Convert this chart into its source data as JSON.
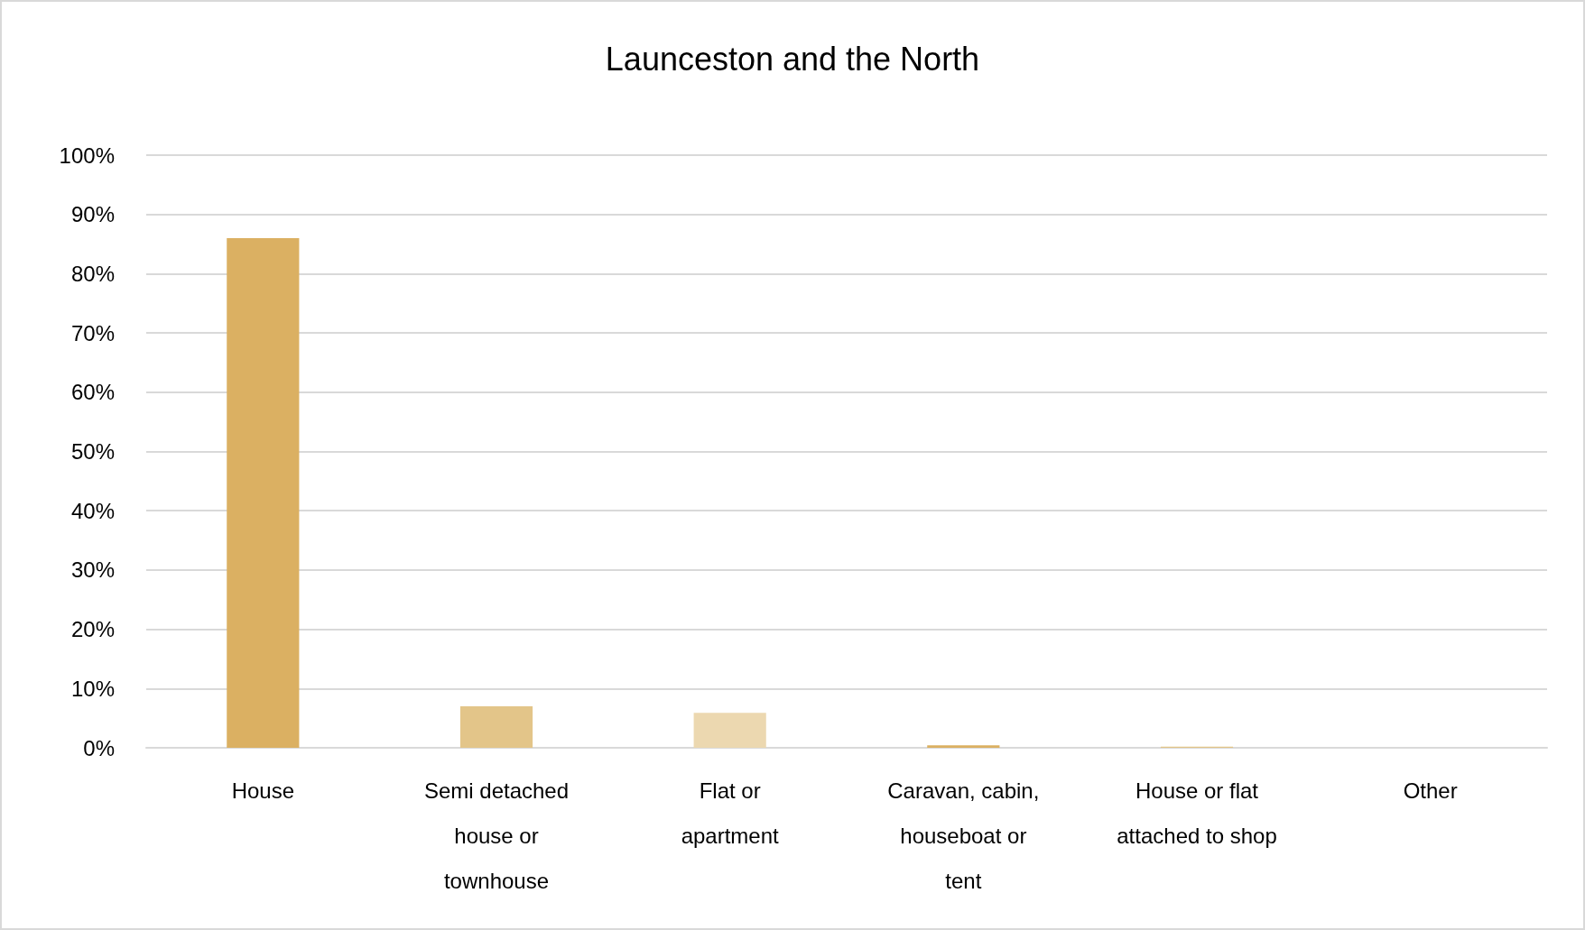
{
  "chart_data": {
    "type": "bar",
    "title": "Launceston and the North",
    "categories": [
      "House",
      "Semi detached house or townhouse",
      "Flat or apartment",
      "Caravan, cabin, houseboat or tent",
      "House or flat attached to shop",
      "Other"
    ],
    "values": [
      86,
      7,
      5.9,
      0.4,
      0.2,
      0
    ],
    "colors": [
      "#dbb062",
      "#e3c589",
      "#ecd8b0",
      "#dbb062",
      "#e3c589",
      "#ecd8b0"
    ],
    "ylim": [
      0,
      100
    ],
    "yticks": [
      {
        "value": 0,
        "label": "0%"
      },
      {
        "value": 10,
        "label": "10%"
      },
      {
        "value": 20,
        "label": "20%"
      },
      {
        "value": 30,
        "label": "30%"
      },
      {
        "value": 40,
        "label": "40%"
      },
      {
        "value": 50,
        "label": "50%"
      },
      {
        "value": 60,
        "label": "60%"
      },
      {
        "value": 70,
        "label": "70%"
      },
      {
        "value": 80,
        "label": "80%"
      },
      {
        "value": 90,
        "label": "90%"
      },
      {
        "value": 100,
        "label": "100%"
      }
    ],
    "grid": "y"
  }
}
